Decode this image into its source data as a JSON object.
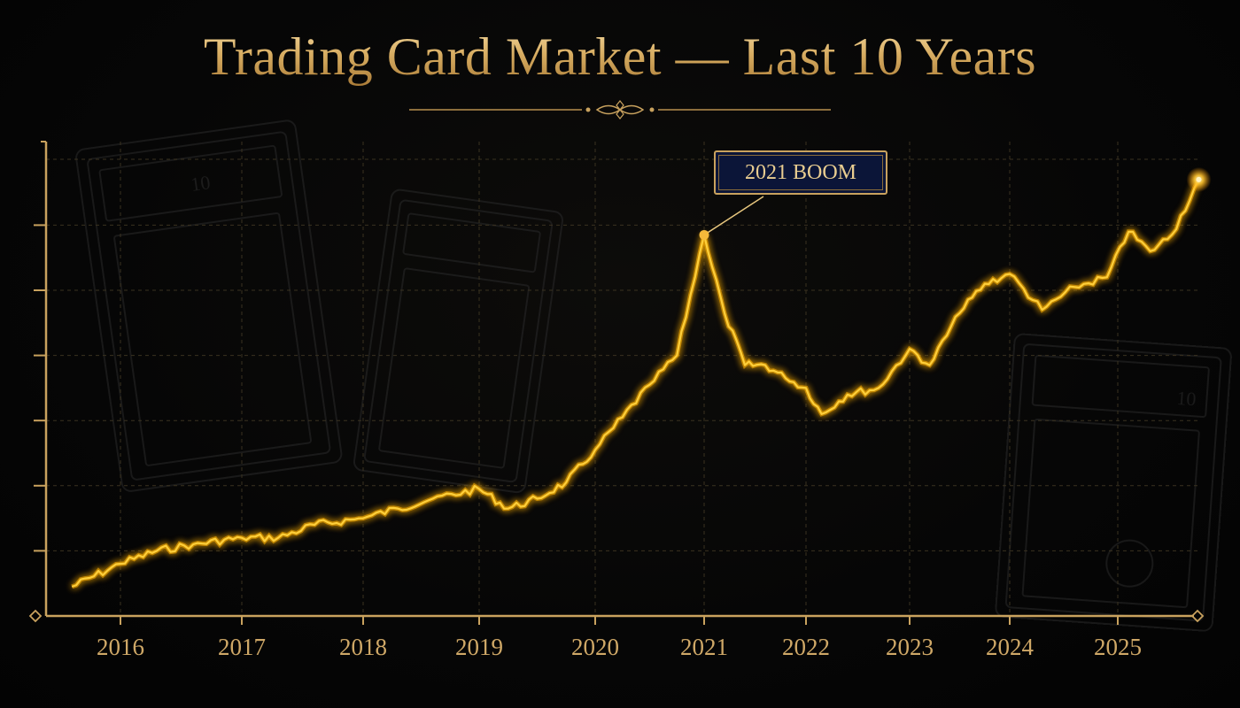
{
  "title": "Trading Card Market — Last 10 Years",
  "annotation": {
    "label": "2021 BOOM",
    "year": 2021
  },
  "colors": {
    "line": "#ffcf3a",
    "glow": "#ffb000",
    "axis": "#c9a25e",
    "text": "#cfa867",
    "grid": "#3a3220",
    "callout_bg": "#0b1538"
  },
  "background_decor": {
    "graded_card_slabs": 3,
    "slab_grade_label": "10"
  },
  "x_axis": {
    "labels": [
      "2016",
      "2017",
      "2018",
      "2019",
      "2020",
      "2021",
      "2022",
      "2023",
      "2024",
      "2025"
    ]
  },
  "chart_data": {
    "type": "line",
    "title": "Trading Card Market — Last 10 Years",
    "xlabel": "",
    "ylabel": "",
    "y_tick_labels_shown": false,
    "y_units": "relative index (gridline units, unlabeled axis)",
    "ylim": [
      0,
      7.3
    ],
    "grid": true,
    "legend": null,
    "categories": [
      "2016",
      "2017",
      "2018",
      "2019",
      "2020",
      "2021",
      "2022",
      "2023",
      "2024",
      "2025"
    ],
    "series": [
      {
        "name": "Trading Card Market",
        "x": [
          2015.6,
          2016.0,
          2016.3,
          2016.6,
          2017.0,
          2017.3,
          2017.6,
          2018.0,
          2018.3,
          2018.6,
          2019.0,
          2019.25,
          2019.5,
          2019.75,
          2020.0,
          2020.25,
          2020.5,
          2020.75,
          2021.0,
          2021.2,
          2021.4,
          2021.6,
          2021.8,
          2022.0,
          2022.15,
          2022.4,
          2022.7,
          2023.0,
          2023.2,
          2023.5,
          2023.75,
          2024.0,
          2024.3,
          2024.6,
          2024.9,
          2025.1,
          2025.3,
          2025.5,
          2025.75
        ],
        "values": [
          0.45,
          0.8,
          1.0,
          1.1,
          1.2,
          1.2,
          1.4,
          1.5,
          1.65,
          1.8,
          1.95,
          1.65,
          1.8,
          2.05,
          2.55,
          3.05,
          3.55,
          4.0,
          5.85,
          4.65,
          3.85,
          3.85,
          3.65,
          3.5,
          3.1,
          3.4,
          3.5,
          4.1,
          3.85,
          4.65,
          5.1,
          5.25,
          4.7,
          5.05,
          5.2,
          5.9,
          5.6,
          5.85,
          6.7
        ]
      }
    ],
    "annotations": [
      {
        "text": "2021 BOOM",
        "x": 2021.0,
        "y": 5.85
      }
    ]
  }
}
